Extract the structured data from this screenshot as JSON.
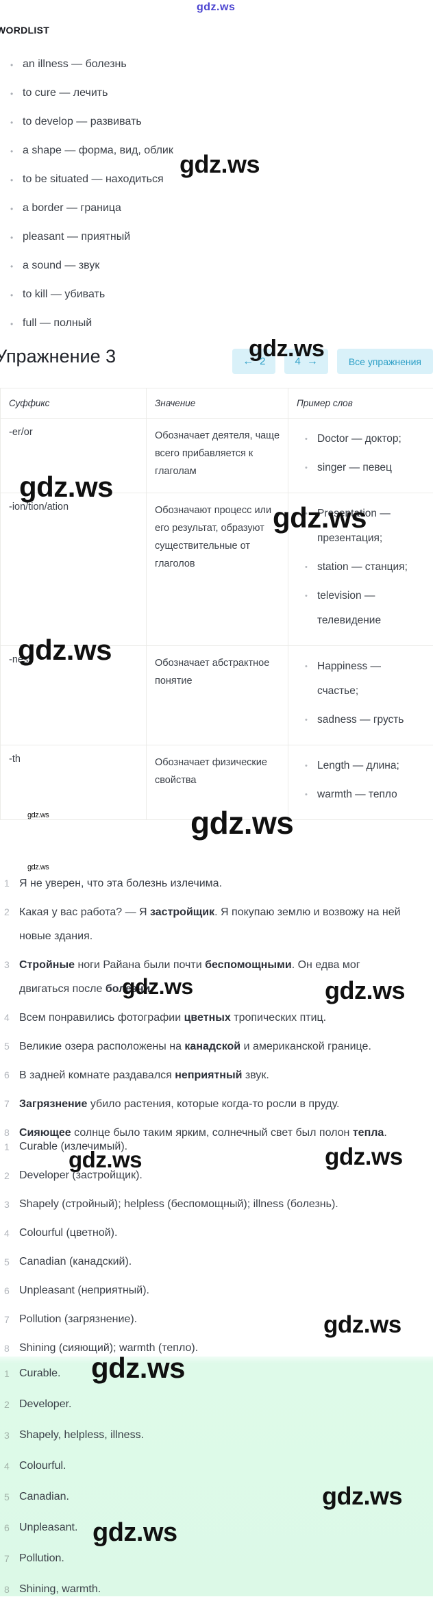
{
  "site": {
    "logo": "gdz.ws",
    "watermark": "gdz.ws"
  },
  "wordlist": {
    "title": "WORDLIST",
    "items": [
      "an illness — болезнь",
      "to cure — лечить",
      "to develop — развивать",
      "a shape — форма, вид, облик",
      "to be situated — находиться",
      "a border — граница",
      "pleasant — приятный",
      "a sound — звук",
      "to kill — убивать",
      "full — полный"
    ]
  },
  "exercise": {
    "title": "Упражнение 3",
    "nav": {
      "prev_arrow": "←",
      "prev_label": "2",
      "next_label": "4",
      "next_arrow": "→",
      "all_label": "Все упражнения"
    }
  },
  "table": {
    "headers": [
      "Суффикс",
      "Значение",
      "Пример слов"
    ],
    "rows": [
      {
        "suffix": "-er/or",
        "meaning": "Обозначает деятеля, чаще всего прибавляется к глаголам",
        "examples": [
          "Doctor — доктор;",
          "singer — певец"
        ]
      },
      {
        "suffix": "-ion/tion/ation",
        "meaning": "Обозначают процесс или его результат, образуют существительные от глаголов",
        "examples": [
          "Presentation — презентация;",
          "station — станция;",
          "television — телевидение"
        ]
      },
      {
        "suffix": "-ness",
        "meaning": "Обозначает абстрактное понятие",
        "examples": [
          "Happiness — счастье;",
          "sadness — грусть"
        ]
      },
      {
        "suffix": "-th",
        "meaning": "Обозначает физические свойства",
        "examples": [
          "Length — длина;",
          "warmth — тепло"
        ]
      }
    ]
  },
  "sentences": {
    "items": [
      {
        "num": "1",
        "segments": [
          "Я не уверен, что эта болезнь излечима."
        ]
      },
      {
        "num": "2",
        "segments": [
          "Какая у вас работа? — Я ",
          {
            "b": "застройщик"
          },
          ". Я покупаю землю и возвожу на ней новые здания."
        ]
      },
      {
        "num": "3",
        "segments": [
          {
            "b": "Стройные"
          },
          " ноги Райана были почти ",
          {
            "b": "беспомощными"
          },
          ". Он едва мог двигаться после ",
          {
            "b": "болезни"
          },
          "."
        ]
      },
      {
        "num": "4",
        "segments": [
          "Всем понравились фотографии ",
          {
            "b": "цветных"
          },
          " тропических птиц."
        ]
      },
      {
        "num": "5",
        "segments": [
          "Великие озера расположены на ",
          {
            "b": "канадской"
          },
          " и американской границе."
        ]
      },
      {
        "num": "6",
        "segments": [
          "В задней комнате раздавался ",
          {
            "b": "неприятный"
          },
          " звук."
        ]
      },
      {
        "num": "7",
        "segments": [
          {
            "b": "Загрязнение"
          },
          " убило растения, которые когда-то росли в пруду."
        ]
      },
      {
        "num": "8",
        "segments": [
          {
            "b": "Сияющее"
          },
          " солнце было таким ярким, солнечный свет был полон ",
          {
            "b": "тепла"
          },
          "."
        ]
      }
    ]
  },
  "answers_full": {
    "items": [
      {
        "num": "1",
        "text": "Curable (излечимый)."
      },
      {
        "num": "2",
        "text": "Developer (застройщик)."
      },
      {
        "num": "3",
        "text": "Shapely (стройный); helpless (беспомощный); illness (болезнь)."
      },
      {
        "num": "4",
        "text": "Colourful (цветной)."
      },
      {
        "num": "5",
        "text": "Canadian (канадский)."
      },
      {
        "num": "6",
        "text": "Unpleasant (неприятный)."
      },
      {
        "num": "7",
        "text": "Pollution (загрязнение)."
      },
      {
        "num": "8",
        "text": "Shining (сияющий); warmth (тепло)."
      }
    ]
  },
  "answers_short": {
    "items": [
      {
        "num": "1",
        "text": "Curable."
      },
      {
        "num": "2",
        "text": "Developer."
      },
      {
        "num": "3",
        "text": "Shapely, helpless, illness."
      },
      {
        "num": "4",
        "text": "Colourful."
      },
      {
        "num": "5",
        "text": "Canadian."
      },
      {
        "num": "6",
        "text": "Unpleasant."
      },
      {
        "num": "7",
        "text": "Pollution."
      },
      {
        "num": "8",
        "text": "Shining, warmth."
      }
    ]
  },
  "colors": {
    "accent_teal": "#2d9fc6",
    "button_bg": "#d9f1f9",
    "answer_block_green": "#dcf9e7",
    "watermark_black": "#101010",
    "logo_blue": "#4a43d0"
  }
}
